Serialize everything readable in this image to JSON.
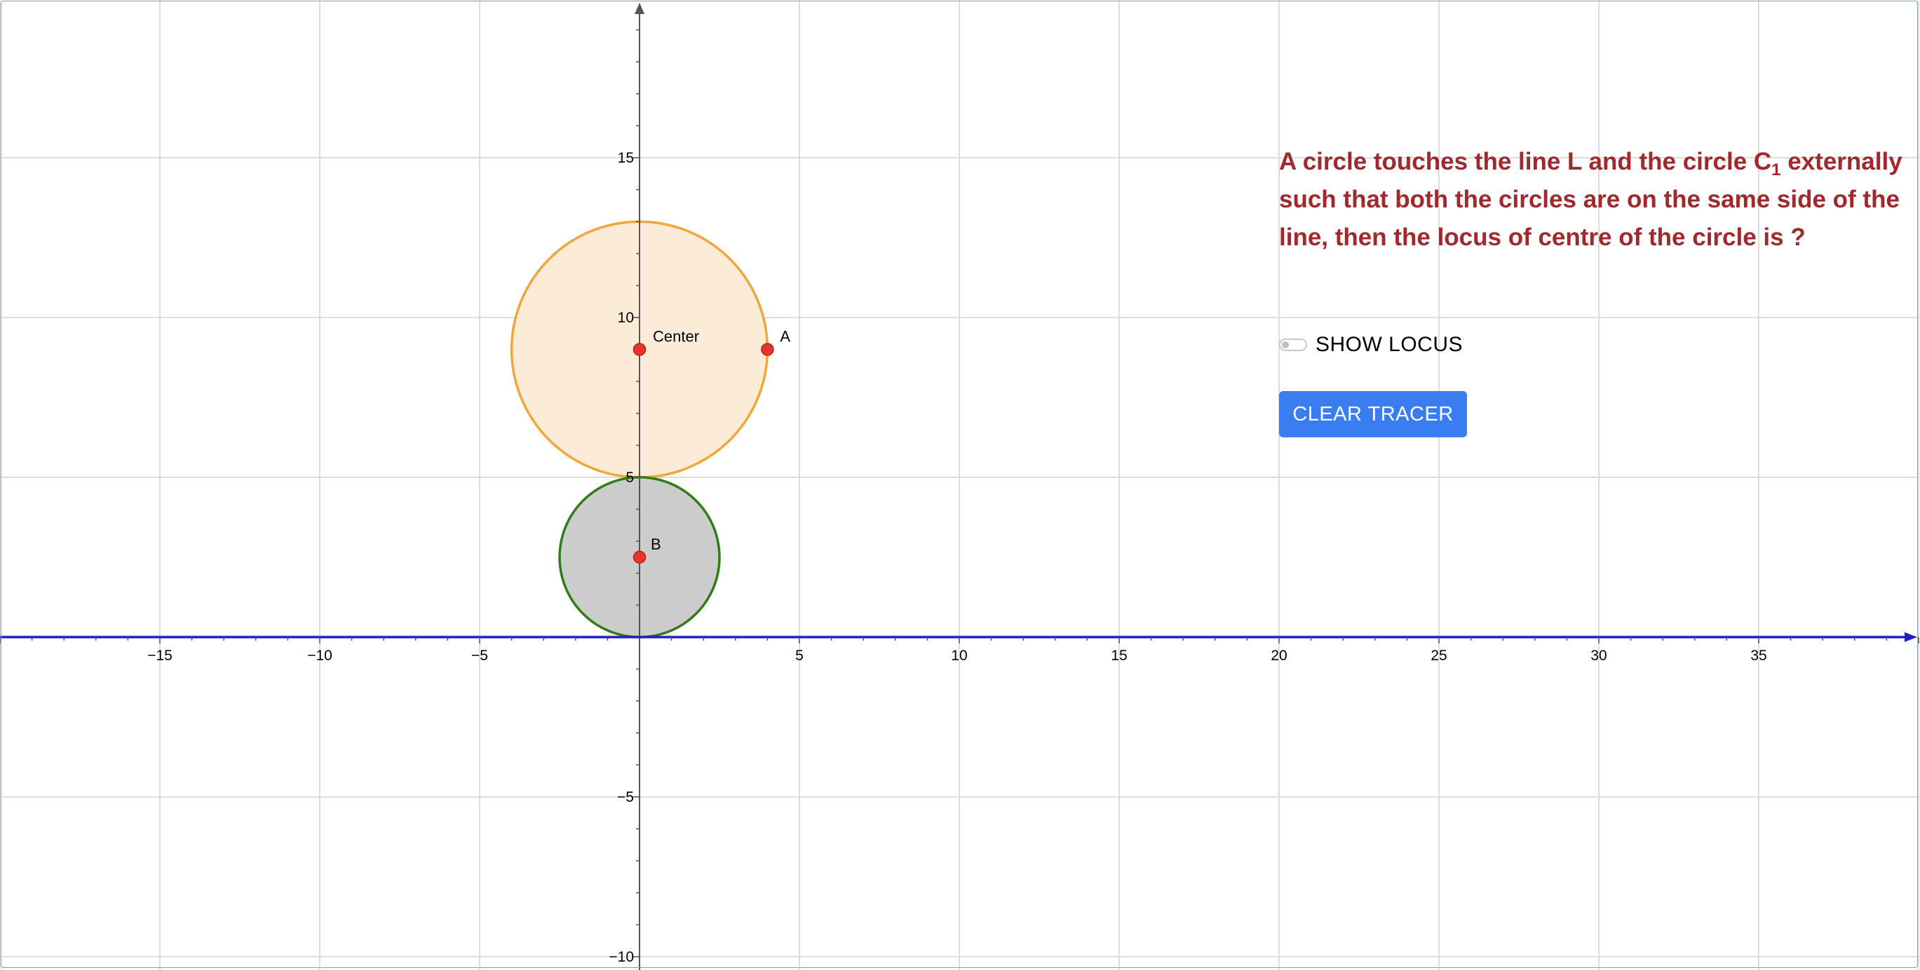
{
  "graph": {
    "x_ticks": [
      "−15",
      "−10",
      "−5",
      "5",
      "10",
      "15",
      "20",
      "25",
      "30",
      "35"
    ],
    "y_ticks": [
      "15",
      "10",
      "5",
      "−5",
      "−10"
    ],
    "points": {
      "center": {
        "label": "Center",
        "x": 0,
        "y": 9
      },
      "a": {
        "label": "A",
        "x": 4,
        "y": 9
      },
      "b": {
        "label": "B",
        "x": 0,
        "y": 2.5
      }
    },
    "circles": {
      "moving": {
        "cx": 0,
        "cy": 9,
        "r": 4,
        "stroke": "#f0a63a",
        "fill": "#fcebd6"
      },
      "c1": {
        "cx": 0,
        "cy": 2.5,
        "r": 2.5,
        "stroke": "#2e7d16",
        "fill": "#cccccc"
      }
    },
    "line_l": {
      "y": 0,
      "color": "#2020c0"
    },
    "point_color": "#e8342a"
  },
  "question": {
    "part1": "A circle touches the line L and the circle C",
    "subscript": "1",
    "part2": " externally such that both the circles are on the same side of the line, then the locus of centre of the circle is ?"
  },
  "controls": {
    "show_locus_label": "SHOW LOCUS",
    "show_locus_on": false,
    "clear_tracer_label": "CLEAR TRACER"
  },
  "colors": {
    "question_text": "#a1282c",
    "button_bg": "#3a7df0"
  }
}
